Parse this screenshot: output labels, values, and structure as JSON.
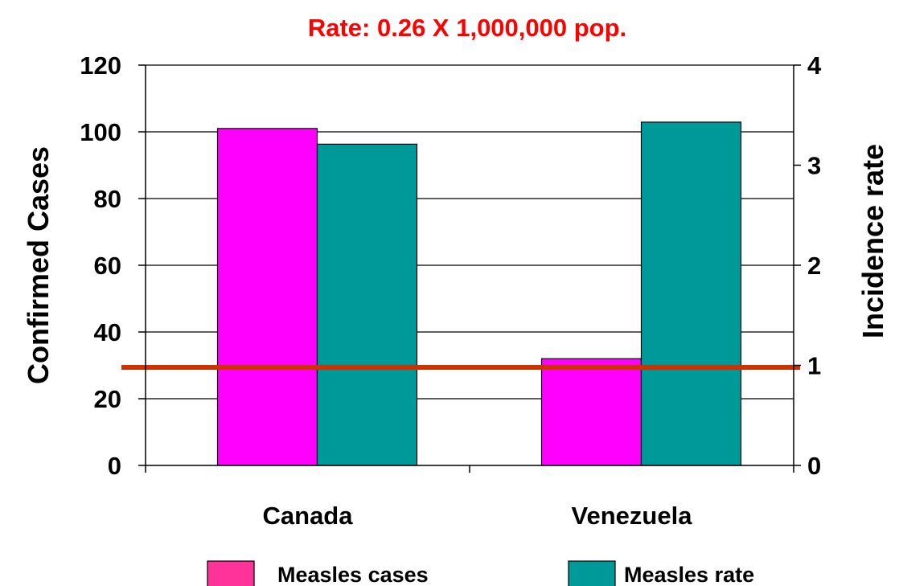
{
  "chart_data": {
    "type": "bar",
    "title": "",
    "annotation": "Rate: 0.26 X 1,000,000 pop.",
    "categories": [
      "Canada",
      "Venezuela"
    ],
    "series": [
      {
        "name": "Measles cases",
        "axis": "left",
        "values": [
          101,
          32
        ]
      },
      {
        "name": "Measles rate",
        "axis": "right",
        "values": [
          3.21,
          3.43
        ]
      }
    ],
    "reference_line": {
      "axis": "right",
      "value": 0.98
    },
    "ylabel": "Confirmed Cases",
    "ylabel_right": "Incidence rate",
    "ylim": [
      0,
      120
    ],
    "ylim_right": [
      0,
      4
    ],
    "yticks": [
      0,
      20,
      40,
      60,
      80,
      100,
      120
    ],
    "yticks_right": [
      0,
      1,
      2,
      3,
      4
    ],
    "grid": true,
    "legend_position": "bottom"
  },
  "colors": {
    "cases": "#ff00ff",
    "cases_legend": "#ff3399",
    "rate": "#009999",
    "reference_line": "#cc3300",
    "annotation": "#ff0000",
    "axis": "#000000"
  }
}
